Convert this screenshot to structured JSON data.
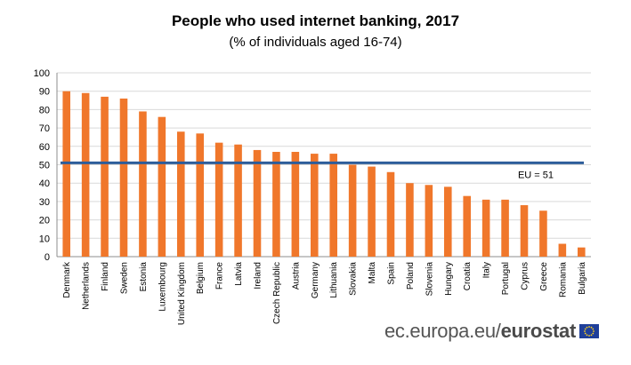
{
  "chart_data": {
    "type": "bar",
    "title": "People who used internet banking, 2017",
    "subtitle": "(% of individuals aged 16-74)",
    "categories": [
      "Denmark",
      "Netherlands",
      "Finland",
      "Sweden",
      "Estonia",
      "Luxembourg",
      "United Kingdom",
      "Belgium",
      "France",
      "Latvia",
      "Ireland",
      "Czech Republic",
      "Austria",
      "Germany",
      "Lithuania",
      "Slovakia",
      "Malta",
      "Spain",
      "Poland",
      "Slovenia",
      "Hungary",
      "Croatia",
      "Italy",
      "Portugal",
      "Cyprus",
      "Greece",
      "Romania",
      "Bulgaria"
    ],
    "values": [
      90,
      89,
      87,
      86,
      79,
      76,
      68,
      67,
      62,
      61,
      58,
      57,
      57,
      56,
      56,
      50,
      49,
      46,
      40,
      39,
      38,
      33,
      31,
      31,
      28,
      25,
      7,
      5
    ],
    "ylim": [
      0,
      100
    ],
    "yticks": [
      0,
      10,
      20,
      30,
      40,
      50,
      60,
      70,
      80,
      90,
      100
    ],
    "grid": true,
    "reference_line": {
      "value": 51,
      "label": "EU = 51"
    },
    "colors": {
      "bar": "#F0772B",
      "reference_line": "#2D5D9A",
      "grid": "#D9D9D9",
      "axis": "#8C8C8C"
    }
  },
  "branding": {
    "site": "ec.europa.eu/",
    "name": "eurostat"
  }
}
